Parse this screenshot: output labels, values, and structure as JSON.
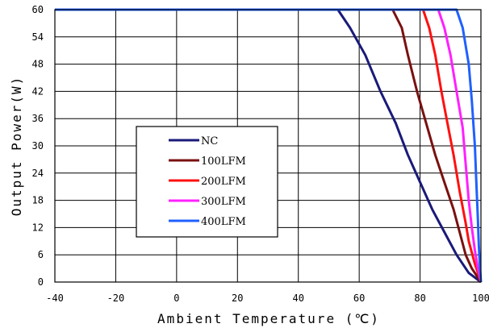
{
  "chart_data": {
    "type": "line",
    "title": "",
    "xlabel": "Ambient Temperature (℃)",
    "ylabel": "Output Power(W)",
    "xlim": [
      -40,
      100
    ],
    "ylim": [
      0,
      60
    ],
    "xticks": [
      -40,
      -20,
      0,
      20,
      40,
      60,
      80,
      100
    ],
    "yticks": [
      0,
      6,
      12,
      18,
      24,
      30,
      36,
      42,
      48,
      54,
      60
    ],
    "grid": true,
    "legend_position": "center-left",
    "series": [
      {
        "name": "NC",
        "color": "#1a1a7a",
        "points": [
          [
            -40,
            60
          ],
          [
            53,
            60
          ],
          [
            57,
            56
          ],
          [
            62,
            50
          ],
          [
            67,
            42
          ],
          [
            72,
            35
          ],
          [
            76,
            28
          ],
          [
            80,
            22
          ],
          [
            84,
            16
          ],
          [
            88,
            11
          ],
          [
            92,
            6
          ],
          [
            96,
            2
          ],
          [
            100,
            0
          ]
        ]
      },
      {
        "name": "100LFM",
        "color": "#7a1010",
        "points": [
          [
            -40,
            60
          ],
          [
            71,
            60
          ],
          [
            74,
            56
          ],
          [
            76,
            50
          ],
          [
            79,
            42
          ],
          [
            82,
            35
          ],
          [
            85,
            28
          ],
          [
            88,
            22
          ],
          [
            91,
            16
          ],
          [
            93,
            11
          ],
          [
            95,
            6
          ],
          [
            97,
            3
          ],
          [
            100,
            0
          ]
        ]
      },
      {
        "name": "200LFM",
        "color": "#ff1010",
        "points": [
          [
            -40,
            60
          ],
          [
            81,
            60
          ],
          [
            83,
            56
          ],
          [
            85,
            50
          ],
          [
            87,
            42
          ],
          [
            89,
            35
          ],
          [
            91,
            28
          ],
          [
            93,
            20
          ],
          [
            95,
            13
          ],
          [
            96,
            9
          ],
          [
            98,
            4
          ],
          [
            100,
            0
          ]
        ]
      },
      {
        "name": "300LFM",
        "color": "#ff20ff",
        "points": [
          [
            -40,
            60
          ],
          [
            86,
            60
          ],
          [
            88,
            56
          ],
          [
            90,
            50
          ],
          [
            92,
            42
          ],
          [
            94,
            34
          ],
          [
            95,
            26
          ],
          [
            96,
            18
          ],
          [
            97,
            12
          ],
          [
            98,
            7
          ],
          [
            99,
            3
          ],
          [
            100,
            0
          ]
        ]
      },
      {
        "name": "400LFM",
        "color": "#2060ff",
        "points": [
          [
            -40,
            60
          ],
          [
            92,
            60
          ],
          [
            94,
            56
          ],
          [
            96,
            48
          ],
          [
            97,
            40
          ],
          [
            98,
            30
          ],
          [
            98.5,
            22
          ],
          [
            99,
            14
          ],
          [
            99.3,
            8
          ],
          [
            99.7,
            3
          ],
          [
            100,
            0
          ]
        ]
      }
    ]
  }
}
